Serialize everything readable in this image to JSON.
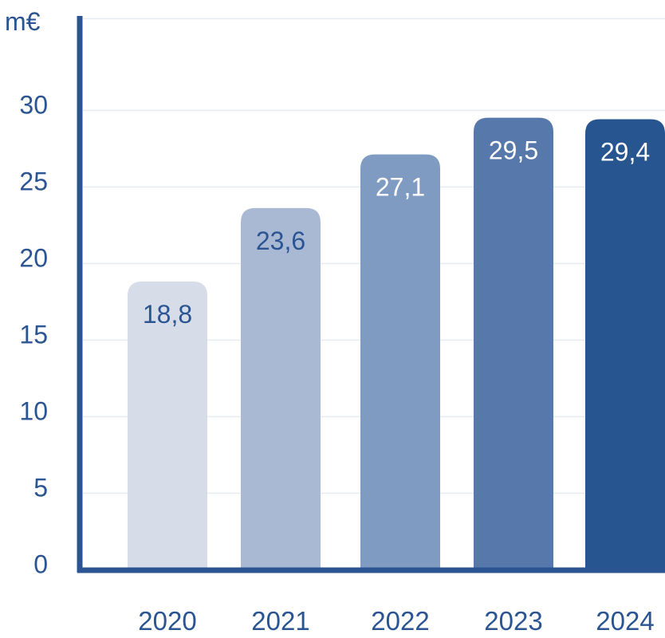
{
  "chart_data": {
    "type": "bar",
    "unit_label": "m€",
    "categories": [
      "2020",
      "2021",
      "2022",
      "2023",
      "2024"
    ],
    "values": [
      18.8,
      23.6,
      27.1,
      29.5,
      29.4
    ],
    "value_labels": [
      "18,8",
      "23,6",
      "27,1",
      "29,5",
      "29,4"
    ],
    "yticks": [
      0,
      5,
      10,
      15,
      20,
      25,
      30
    ],
    "ylim": [
      0,
      36
    ],
    "grid": true,
    "legend": "none"
  },
  "colors": {
    "axis": "#2a5592",
    "text": "#2a5592",
    "grid": "#e6ebf2",
    "bars": [
      "#d6dde9",
      "#a9b9d4",
      "#7f9bc1",
      "#5678aa",
      "#27558f"
    ],
    "value_text": [
      "#2a5592",
      "#2a5592",
      "#ffffff",
      "#ffffff",
      "#ffffff"
    ]
  }
}
